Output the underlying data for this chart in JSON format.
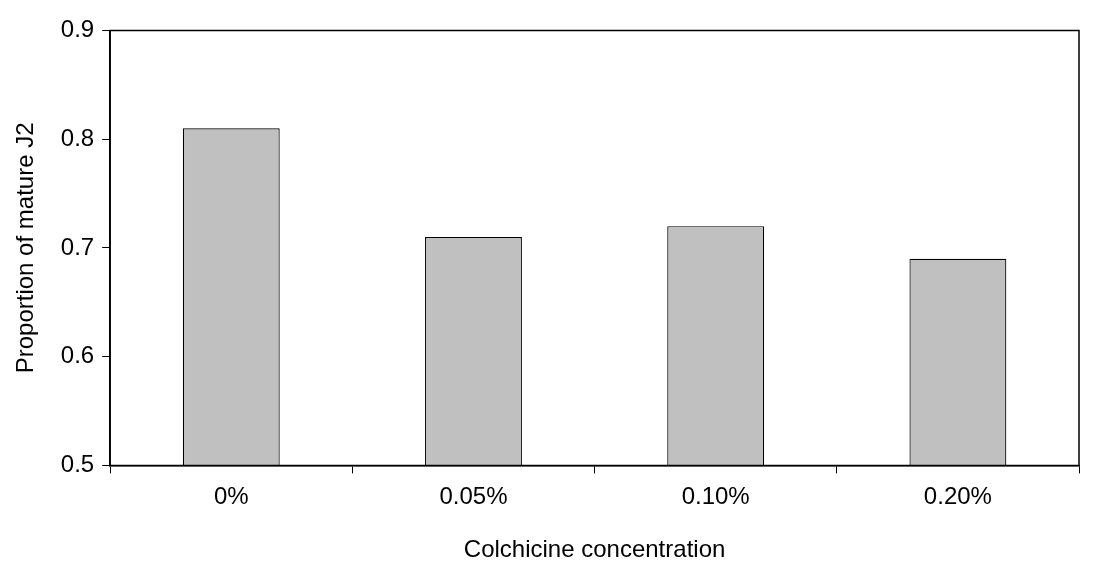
{
  "chart_data": {
    "type": "bar",
    "xlabel": "Colchicine concentration",
    "ylabel": "Proportion of mature J2",
    "categories": [
      "0%",
      "0.05%",
      "0.10%",
      "0.20%"
    ],
    "values": [
      0.81,
      0.71,
      0.72,
      0.69
    ],
    "color": "#c0c0c0",
    "ylim": [
      0.5,
      0.9
    ],
    "yticks": [
      0.5,
      0.6,
      0.7,
      0.8,
      0.9
    ],
    "grid": false,
    "legend": false
  }
}
